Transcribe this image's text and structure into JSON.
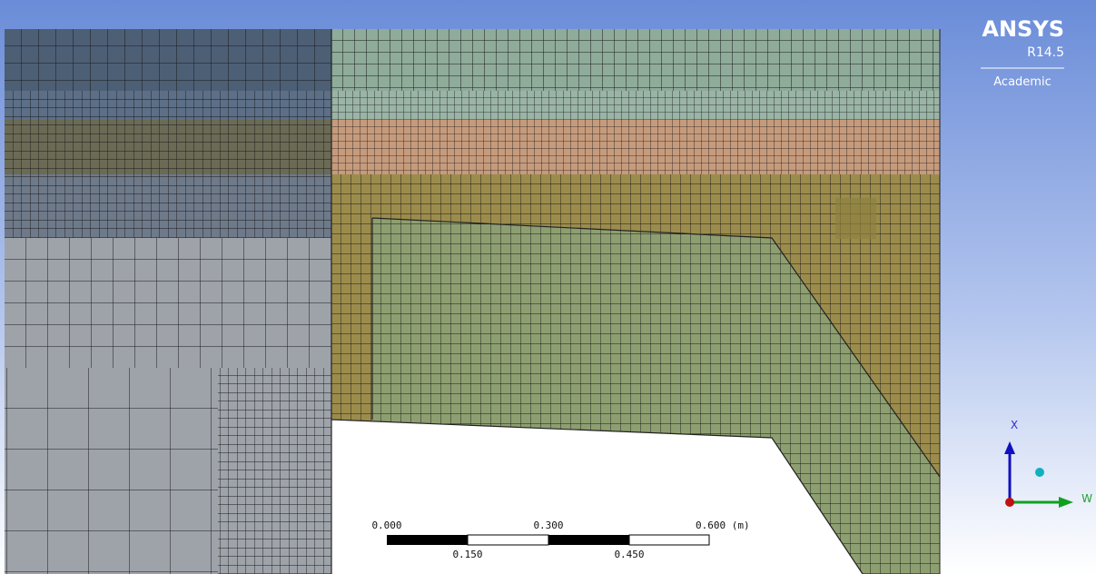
{
  "logo": {
    "brand": "ANSYS",
    "version": "R14.5",
    "license": "Academic"
  },
  "scale_bar": {
    "top_labels": [
      "0.000",
      "0.300",
      "0.600 (m)"
    ],
    "bottom_labels": [
      "0.150",
      "0.450"
    ]
  },
  "triad": {
    "x_label": "X",
    "w_label": "W"
  }
}
